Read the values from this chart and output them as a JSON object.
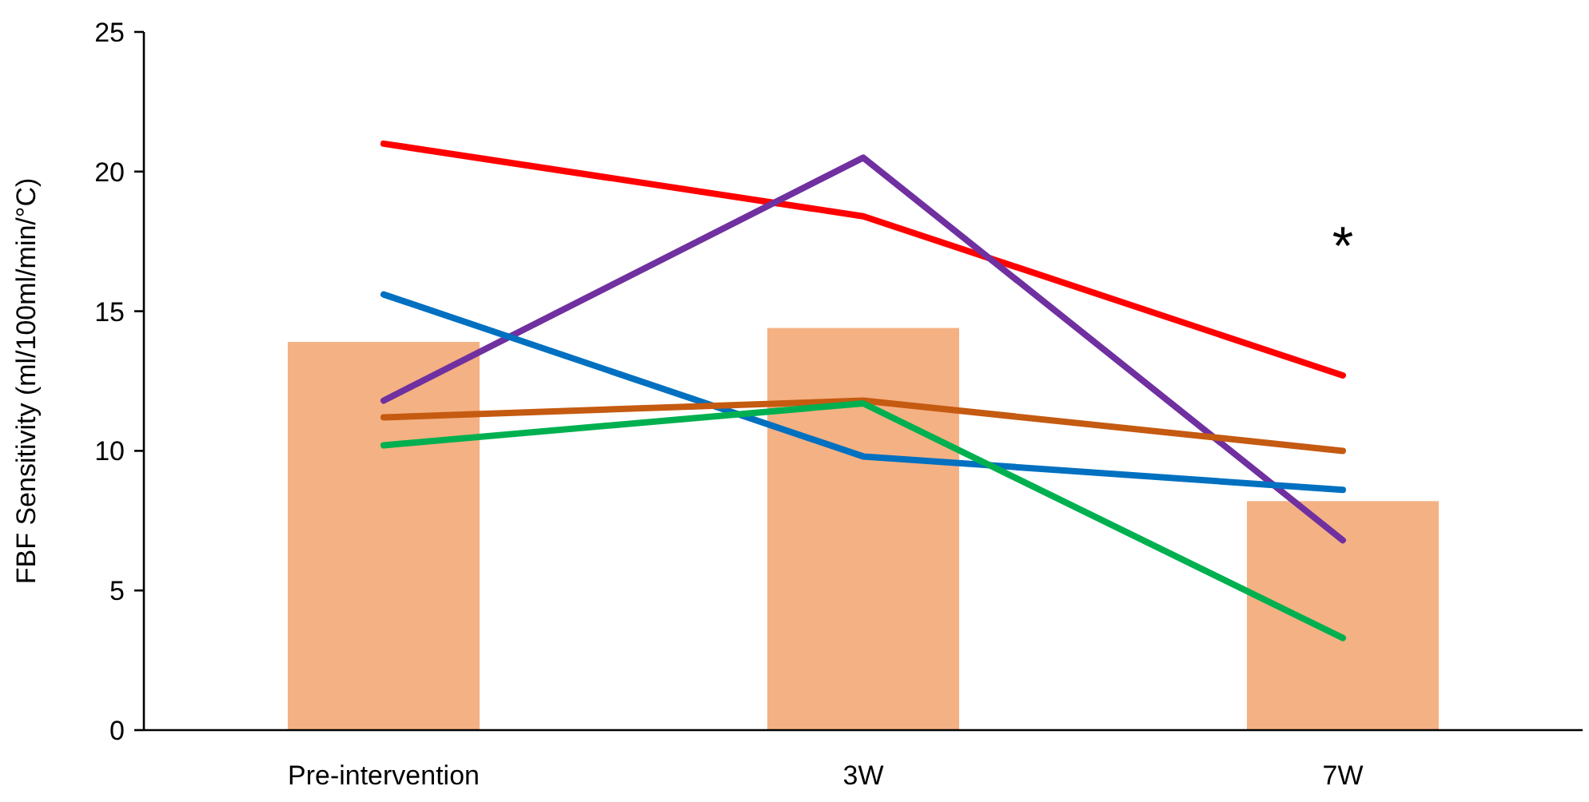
{
  "chart_data": {
    "type": "bar",
    "ylabel": "FBF Sensitivity (ml/100ml/min/°C)",
    "categories": [
      "Pre-intervention",
      "3W",
      "7W"
    ],
    "ylim": [
      0,
      25
    ],
    "yticks": [
      0,
      5,
      10,
      15,
      20,
      25
    ],
    "grid": false,
    "marker": "none",
    "line_style": "solid",
    "annotations": [
      "*"
    ],
    "series": [
      {
        "color": "#f4b183",
        "values": [
          13.9,
          14.4,
          8.2
        ]
      },
      {
        "type": "line",
        "color": "#ff0000",
        "values": [
          21,
          18.4,
          12.7
        ]
      },
      {
        "type": "line",
        "color": "#7030a0",
        "values": [
          11.8,
          20.5,
          6.8
        ]
      },
      {
        "type": "line",
        "color": "#0070c0",
        "values": [
          15.6,
          9.8,
          8.6
        ]
      },
      {
        "type": "line",
        "color": "#c55a11",
        "values": [
          11.2,
          11.8,
          10.0
        ]
      },
      {
        "type": "line",
        "color": "#00b050",
        "values": [
          10.2,
          11.7,
          3.3
        ]
      }
    ]
  }
}
